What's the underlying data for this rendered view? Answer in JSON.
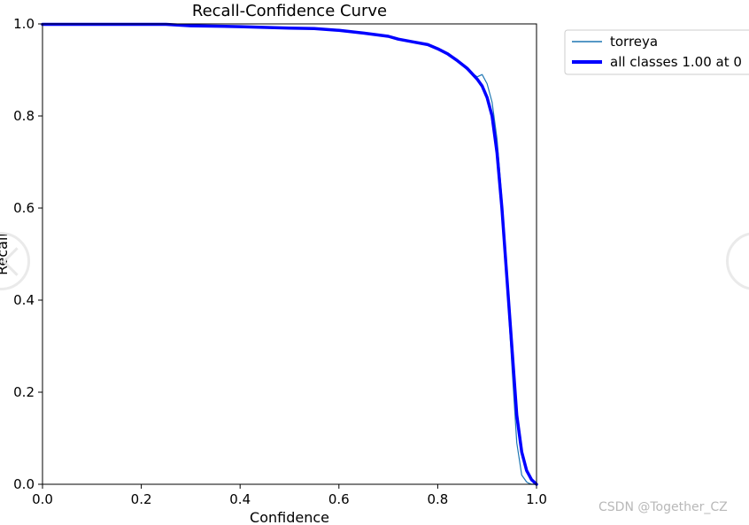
{
  "chart_data": {
    "type": "line",
    "title": "Recall-Confidence Curve",
    "xlabel": "Confidence",
    "ylabel": "Recall",
    "xlim": [
      0.0,
      1.0
    ],
    "ylim": [
      0.0,
      1.0
    ],
    "xticks": [
      "0.0",
      "0.2",
      "0.4",
      "0.6",
      "0.8",
      "1.0"
    ],
    "yticks": [
      "0.0",
      "0.2",
      "0.4",
      "0.6",
      "0.8",
      "1.0"
    ],
    "grid": false,
    "legend_position": "outside-top-right",
    "series": [
      {
        "name": "torreya",
        "color": "#1f77b4",
        "x": [
          0.0,
          0.2,
          0.25,
          0.3,
          0.4,
          0.5,
          0.55,
          0.6,
          0.65,
          0.7,
          0.72,
          0.75,
          0.78,
          0.8,
          0.82,
          0.84,
          0.86,
          0.88,
          0.89,
          0.9,
          0.91,
          0.92,
          0.93,
          0.94,
          0.95,
          0.96,
          0.97,
          0.98,
          0.985,
          0.99,
          1.0
        ],
        "y": [
          0.999,
          0.999,
          0.999,
          0.996,
          0.994,
          0.991,
          0.99,
          0.986,
          0.98,
          0.973,
          0.967,
          0.961,
          0.955,
          0.946,
          0.935,
          0.92,
          0.9,
          0.885,
          0.89,
          0.87,
          0.83,
          0.75,
          0.62,
          0.44,
          0.26,
          0.09,
          0.02,
          0.005,
          0.002,
          0.0,
          0.0
        ]
      },
      {
        "name": "all classes 1.00 at 0",
        "color": "#0000ff",
        "x": [
          0.0,
          0.2,
          0.25,
          0.3,
          0.4,
          0.5,
          0.55,
          0.6,
          0.65,
          0.7,
          0.72,
          0.75,
          0.78,
          0.8,
          0.82,
          0.84,
          0.86,
          0.88,
          0.89,
          0.9,
          0.91,
          0.92,
          0.93,
          0.94,
          0.95,
          0.96,
          0.97,
          0.98,
          0.99,
          1.0
        ],
        "y": [
          0.999,
          0.999,
          0.999,
          0.996,
          0.994,
          0.991,
          0.99,
          0.986,
          0.98,
          0.973,
          0.967,
          0.961,
          0.955,
          0.946,
          0.935,
          0.92,
          0.903,
          0.88,
          0.865,
          0.84,
          0.8,
          0.72,
          0.6,
          0.45,
          0.3,
          0.15,
          0.07,
          0.03,
          0.01,
          0.0
        ]
      }
    ]
  },
  "watermark": "CSDN @Together_CZ"
}
